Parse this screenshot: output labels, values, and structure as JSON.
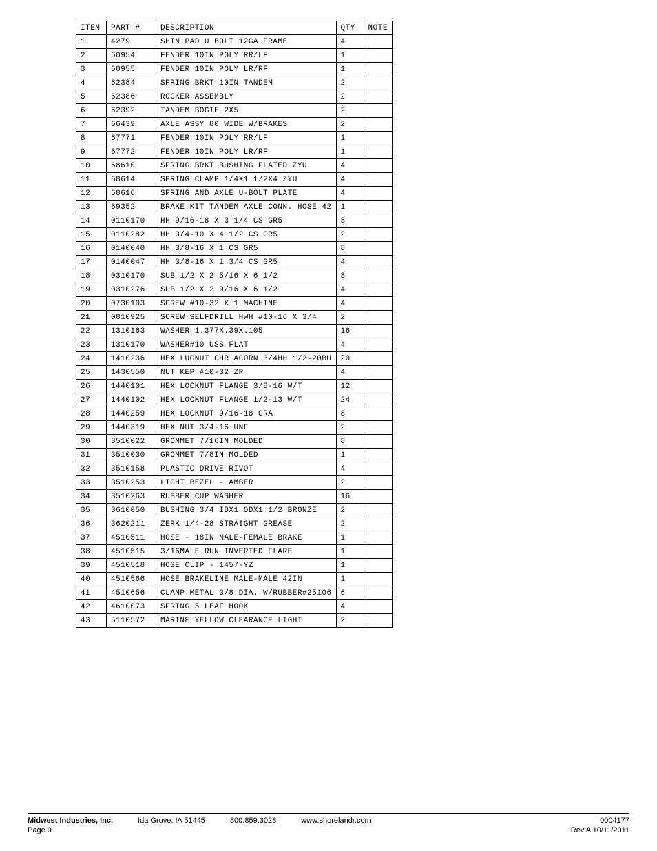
{
  "table": {
    "headers": {
      "item": "ITEM",
      "part": "PART #",
      "desc": "DESCRIPTION",
      "qty": "QTY",
      "note": "NOTE"
    },
    "col_widths": {
      "item": 44,
      "part": 72,
      "desc": 260,
      "qty": 40,
      "note": 40
    },
    "font_family": "Courier New, monospace",
    "font_size": 11,
    "border_color": "#000000",
    "rows": [
      {
        "item": "1",
        "part": "4279",
        "desc": "SHIM PAD  U BOLT 12GA FRAME",
        "qty": "4",
        "note": ""
      },
      {
        "item": "2",
        "part": "60954",
        "desc": "FENDER  10IN POLY RR/LF",
        "qty": "1",
        "note": ""
      },
      {
        "item": "3",
        "part": "60955",
        "desc": "FENDER  10IN POLY LR/RF",
        "qty": "1",
        "note": ""
      },
      {
        "item": "4",
        "part": "62384",
        "desc": "SPRING BRKT   10IN TANDEM",
        "qty": "2",
        "note": ""
      },
      {
        "item": "5",
        "part": "62386",
        "desc": "ROCKER ASSEMBLY",
        "qty": "2",
        "note": ""
      },
      {
        "item": "6",
        "part": "62392",
        "desc": "TANDEM BOGIE   2X5",
        "qty": "2",
        "note": ""
      },
      {
        "item": "7",
        "part": "66439",
        "desc": "AXLE ASSY 80 WIDE W/BRAKES",
        "qty": "2",
        "note": ""
      },
      {
        "item": "8",
        "part": "67771",
        "desc": "FENDER  10IN POLY RR/LF",
        "qty": "1",
        "note": ""
      },
      {
        "item": "9",
        "part": "67772",
        "desc": "FENDER  10IN POLY LR/RF",
        "qty": "1",
        "note": ""
      },
      {
        "item": "10",
        "part": "68610",
        "desc": "SPRING BRKT BUSHING PLATED ZYU",
        "qty": "4",
        "note": ""
      },
      {
        "item": "11",
        "part": "68614",
        "desc": "SPRING CLAMP  1/4X1 1/2X4  ZYU",
        "qty": "4",
        "note": ""
      },
      {
        "item": "12",
        "part": "68616",
        "desc": "SPRING AND AXLE U-BOLT PLATE",
        "qty": "4",
        "note": ""
      },
      {
        "item": "13",
        "part": "69352",
        "desc": "BRAKE KIT TANDEM AXLE CONN. HOSE 42",
        "qty": "1",
        "note": ""
      },
      {
        "item": "14",
        "part": "0110170",
        "desc": "HH 9/16-18 X 3 1/4 CS GR5",
        "qty": "8",
        "note": ""
      },
      {
        "item": "15",
        "part": "0110282",
        "desc": "HH 3/4-10 X 4 1/2 CS GR5",
        "qty": "2",
        "note": ""
      },
      {
        "item": "16",
        "part": "0140040",
        "desc": "HH 3/8-16 X 1 CS GR5",
        "qty": "8",
        "note": ""
      },
      {
        "item": "17",
        "part": "0140047",
        "desc": "HH 3/8-16 X 1 3/4 CS GR5",
        "qty": "4",
        "note": ""
      },
      {
        "item": "18",
        "part": "0310170",
        "desc": "SUB 1/2 X 2 5/16 X 6 1/2",
        "qty": "8",
        "note": ""
      },
      {
        "item": "19",
        "part": "0310276",
        "desc": "SUB 1/2 X 2 9/16 X 6 1/2",
        "qty": "4",
        "note": ""
      },
      {
        "item": "20",
        "part": "0730103",
        "desc": "SCREW #10-32 X 1 MACHINE",
        "qty": "4",
        "note": ""
      },
      {
        "item": "21",
        "part": "0810925",
        "desc": "SCREW SELFDRILL HWH #10-16 X 3/4",
        "qty": "2",
        "note": ""
      },
      {
        "item": "22",
        "part": "1310163",
        "desc": "WASHER 1.377X.39X.105",
        "qty": "16",
        "note": ""
      },
      {
        "item": "23",
        "part": "1310170",
        "desc": "WASHER#10 USS FLAT",
        "qty": "4",
        "note": ""
      },
      {
        "item": "24",
        "part": "1410236",
        "desc": "HEX LUGNUT CHR ACORN 3/4HH 1/2-20BU",
        "qty": "20",
        "note": ""
      },
      {
        "item": "25",
        "part": "1430550",
        "desc": "NUT KEP #10-32 ZP",
        "qty": "4",
        "note": ""
      },
      {
        "item": "26",
        "part": "1440101",
        "desc": "HEX LOCKNUT FLANGE 3/8-16 W/T",
        "qty": "12",
        "note": ""
      },
      {
        "item": "27",
        "part": "1440102",
        "desc": "HEX LOCKNUT FLANGE 1/2-13 W/T",
        "qty": "24",
        "note": ""
      },
      {
        "item": "28",
        "part": "1440259",
        "desc": "HEX LOCKNUT 9/16-18 GRA",
        "qty": "8",
        "note": ""
      },
      {
        "item": "29",
        "part": "1440319",
        "desc": "HEX NUT 3/4-16 UNF",
        "qty": "2",
        "note": ""
      },
      {
        "item": "30",
        "part": "3510022",
        "desc": "GROMMET  7/16IN MOLDED",
        "qty": "8",
        "note": ""
      },
      {
        "item": "31",
        "part": "3510030",
        "desc": "GROMMET  7/8IN MOLDED",
        "qty": "1",
        "note": ""
      },
      {
        "item": "32",
        "part": "3510158",
        "desc": "PLASTIC DRIVE RIVOT",
        "qty": "4",
        "note": ""
      },
      {
        "item": "33",
        "part": "3510253",
        "desc": "LIGHT BEZEL - AMBER",
        "qty": "2",
        "note": ""
      },
      {
        "item": "34",
        "part": "3510263",
        "desc": "RUBBER CUP WASHER",
        "qty": "16",
        "note": ""
      },
      {
        "item": "35",
        "part": "3610050",
        "desc": "BUSHING  3/4 IDX1 ODX1 1/2 BRONZE",
        "qty": "2",
        "note": ""
      },
      {
        "item": "36",
        "part": "3620211",
        "desc": "ZERK  1/4-28 STRAIGHT GREASE",
        "qty": "2",
        "note": ""
      },
      {
        "item": "37",
        "part": "4510511",
        "desc": "HOSE - 18IN MALE-FEMALE BRAKE",
        "qty": "1",
        "note": ""
      },
      {
        "item": "38",
        "part": "4510515",
        "desc": "3/16MALE RUN INVERTED FLARE",
        "qty": "1",
        "note": ""
      },
      {
        "item": "39",
        "part": "4510518",
        "desc": "HOSE CLIP - 1457-YZ",
        "qty": "1",
        "note": ""
      },
      {
        "item": "40",
        "part": "4510566",
        "desc": "HOSE BRAKELINE MALE-MALE 42IN",
        "qty": "1",
        "note": ""
      },
      {
        "item": "41",
        "part": "4510656",
        "desc": "CLAMP METAL 3/8 DIA. W/RUBBER#25106",
        "qty": "6",
        "note": ""
      },
      {
        "item": "42",
        "part": "4610073",
        "desc": "SPRING  5 LEAF HOOK",
        "qty": "4",
        "note": ""
      },
      {
        "item": "43",
        "part": "5110572",
        "desc": "MARINE YELLOW CLEARANCE LIGHT",
        "qty": "2",
        "note": ""
      }
    ]
  },
  "footer": {
    "company": "Midwest Industries, Inc.",
    "city": "Ida Grove, IA  51445",
    "phone": "800.859.3028",
    "website": "www.shorelandr.com",
    "page": "Page 9",
    "docnum": "0004177",
    "rev": "Rev A 10/11/2011",
    "font_size": 11
  }
}
